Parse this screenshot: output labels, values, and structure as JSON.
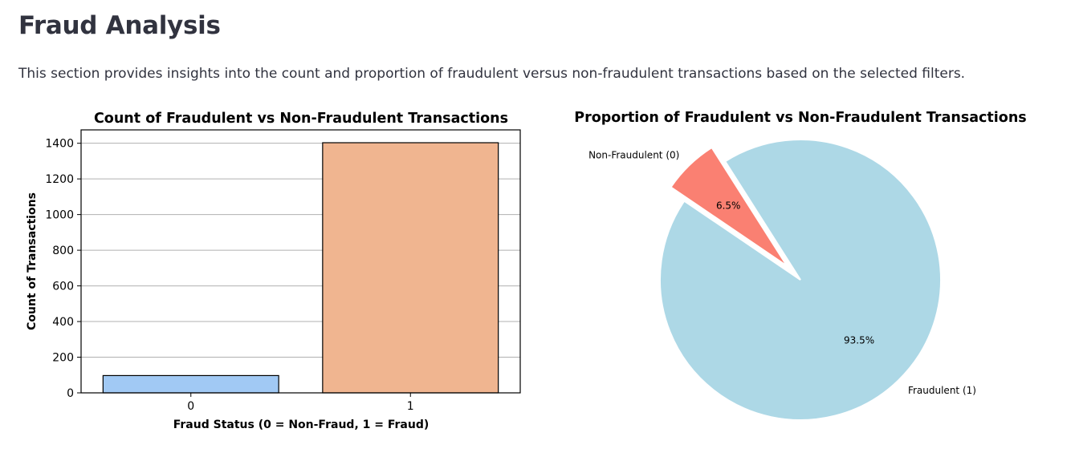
{
  "page": {
    "title": "Fraud Analysis",
    "description": "This section provides insights into the count and proportion of fraudulent versus non-fraudulent transactions based on the selected filters."
  },
  "chart_data": [
    {
      "type": "bar",
      "title": "Count of Fraudulent vs Non-Fraudulent Transactions",
      "xlabel": "Fraud Status (0 = Non-Fraud, 1 = Fraud)",
      "ylabel": "Count of Transactions",
      "categories": [
        "0",
        "1"
      ],
      "values": [
        97,
        1403
      ],
      "colors": [
        "#a1c9f4",
        "#f0b590"
      ],
      "ylim": [
        0,
        1475
      ],
      "yticks": [
        0,
        200,
        400,
        600,
        800,
        1000,
        1200,
        1400
      ],
      "grid": "y"
    },
    {
      "type": "pie",
      "title": "Proportion of Fraudulent vs Non-Fraudulent Transactions",
      "labels": [
        "Non-Fraudulent (0)",
        "Fraudulent (1)"
      ],
      "values": [
        6.5,
        93.5
      ],
      "value_labels": [
        "6.5%",
        "93.5%"
      ],
      "colors": [
        "#fa8072",
        "#add8e6"
      ],
      "exploded": "Non-Fraudulent (0)"
    }
  ]
}
